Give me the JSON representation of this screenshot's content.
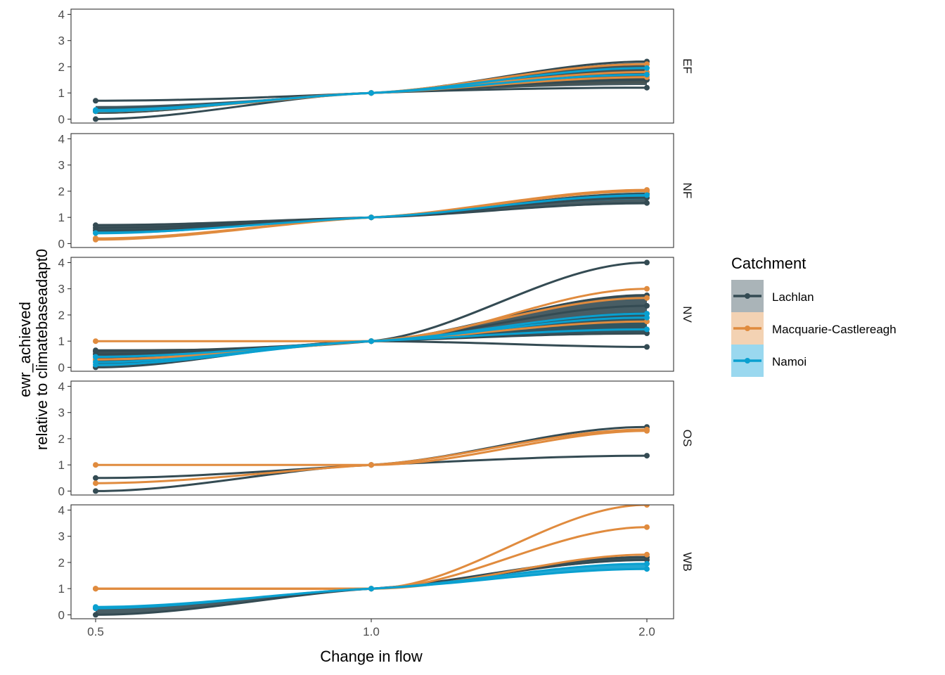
{
  "chart_data": {
    "type": "line",
    "facet_by": "row",
    "facets": [
      "EF",
      "NF",
      "NV",
      "OS",
      "WB"
    ],
    "xlabel": "Change in flow",
    "ylabel_line1": "ewr_achieved",
    "ylabel_line2": "relative to climatebaseadapt0",
    "x_ticks": [
      0.5,
      1.0,
      2.0
    ],
    "x_tick_labels": [
      "0.5",
      "1.0",
      "2.0"
    ],
    "x_scale": "log",
    "y_ticks": [
      0,
      1,
      2,
      3,
      4
    ],
    "y_tick_labels": [
      "0",
      "1",
      "2",
      "3",
      "4"
    ],
    "ylim": [
      -0.15,
      4.2
    ],
    "grid": false,
    "legend": {
      "title": "Catchment",
      "position": "right",
      "entries": [
        {
          "name": "Lachlan",
          "color": "#344b53",
          "fill": "#aab4b8"
        },
        {
          "name": "Macquarie-Castlereagh",
          "color": "#e08b3e",
          "fill": "#f3d2b3"
        },
        {
          "name": "Namoi",
          "color": "#0aa0d0",
          "fill": "#9ad8ef"
        }
      ]
    },
    "panels": [
      {
        "facet": "EF",
        "bands": [
          {
            "catchment": "Namoi",
            "lower": [
              0.2,
              1,
              1.5
            ],
            "upper": [
              0.45,
              1,
              2.0
            ]
          },
          {
            "catchment": "Macquarie-Castlereagh",
            "lower": [
              0.2,
              1,
              1.35
            ],
            "upper": [
              0.4,
              1,
              2.05
            ]
          },
          {
            "catchment": "Lachlan",
            "lower": [
              0.2,
              1,
              1.3
            ],
            "upper": [
              0.5,
              1,
              2.15
            ]
          }
        ],
        "series": [
          {
            "catchment": "Lachlan",
            "values": [
              0.7,
              1,
              2.2
            ]
          },
          {
            "catchment": "Lachlan",
            "values": [
              0.0,
              1,
              1.2
            ]
          },
          {
            "catchment": "Lachlan",
            "values": [
              0.3,
              1,
              1.5
            ]
          },
          {
            "catchment": "Macquarie-Castlereagh",
            "values": [
              0.3,
              1,
              2.1
            ]
          },
          {
            "catchment": "Macquarie-Castlereagh",
            "values": [
              0.3,
              1,
              1.8
            ]
          },
          {
            "catchment": "Macquarie-Castlereagh",
            "values": [
              0.3,
              1,
              1.6
            ]
          },
          {
            "catchment": "Namoi",
            "values": [
              0.35,
              1,
              1.95
            ]
          },
          {
            "catchment": "Namoi",
            "values": [
              0.3,
              1,
              1.7
            ]
          }
        ]
      },
      {
        "facet": "NF",
        "bands": [
          {
            "catchment": "Lachlan",
            "lower": [
              0.4,
              1,
              1.5
            ],
            "upper": [
              0.75,
              1,
              1.95
            ]
          },
          {
            "catchment": "Namoi",
            "lower": [
              0.35,
              1,
              1.7
            ],
            "upper": [
              0.5,
              1,
              1.95
            ]
          }
        ],
        "series": [
          {
            "catchment": "Lachlan",
            "values": [
              0.7,
              1,
              1.55
            ]
          },
          {
            "catchment": "Lachlan",
            "values": [
              0.6,
              1,
              1.75
            ]
          },
          {
            "catchment": "Lachlan",
            "values": [
              0.5,
              1,
              1.9
            ]
          },
          {
            "catchment": "Macquarie-Castlereagh",
            "values": [
              0.15,
              1,
              2.05
            ]
          },
          {
            "catchment": "Macquarie-Castlereagh",
            "values": [
              0.2,
              1,
              2.0
            ]
          },
          {
            "catchment": "Namoi",
            "values": [
              0.4,
              1,
              1.85
            ]
          }
        ]
      },
      {
        "facet": "NV",
        "bands": [
          {
            "catchment": "Namoi",
            "lower": [
              0.0,
              1,
              1.35
            ],
            "upper": [
              0.45,
              1,
              2.1
            ]
          },
          {
            "catchment": "Lachlan",
            "lower": [
              0.1,
              1,
              1.25
            ],
            "upper": [
              0.6,
              1,
              2.8
            ]
          }
        ],
        "series": [
          {
            "catchment": "Lachlan",
            "values": [
              0.65,
              1,
              4.0
            ]
          },
          {
            "catchment": "Lachlan",
            "values": [
              0.6,
              1,
              2.75
            ]
          },
          {
            "catchment": "Lachlan",
            "values": [
              0.5,
              1,
              2.35
            ]
          },
          {
            "catchment": "Lachlan",
            "values": [
              0.3,
              1,
              1.3
            ]
          },
          {
            "catchment": "Lachlan",
            "values": [
              0.0,
              1,
              0.78
            ]
          },
          {
            "catchment": "Macquarie-Castlereagh",
            "values": [
              1.0,
              1,
              3.0
            ]
          },
          {
            "catchment": "Macquarie-Castlereagh",
            "values": [
              0.3,
              1,
              2.65
            ]
          },
          {
            "catchment": "Macquarie-Castlereagh",
            "values": [
              0.3,
              1,
              1.75
            ]
          },
          {
            "catchment": "Namoi",
            "values": [
              0.4,
              1,
              2.05
            ]
          },
          {
            "catchment": "Namoi",
            "values": [
              0.2,
              1,
              1.9
            ]
          },
          {
            "catchment": "Namoi",
            "values": [
              0.1,
              1,
              1.45
            ]
          }
        ]
      },
      {
        "facet": "OS",
        "bands": [],
        "series": [
          {
            "catchment": "Lachlan",
            "values": [
              0.5,
              1,
              2.45
            ]
          },
          {
            "catchment": "Lachlan",
            "values": [
              0.0,
              1,
              1.35
            ]
          },
          {
            "catchment": "Macquarie-Castlereagh",
            "values": [
              1.0,
              1,
              2.3
            ]
          },
          {
            "catchment": "Macquarie-Castlereagh",
            "values": [
              0.3,
              1,
              2.35
            ]
          }
        ]
      },
      {
        "facet": "WB",
        "bands": [
          {
            "catchment": "Namoi",
            "lower": [
              0.25,
              1,
              1.75
            ],
            "upper": [
              0.3,
              1,
              1.95
            ]
          },
          {
            "catchment": "Lachlan",
            "lower": [
              0.0,
              1,
              2.05
            ],
            "upper": [
              0.25,
              1,
              2.25
            ]
          }
        ],
        "series": [
          {
            "catchment": "Lachlan",
            "values": [
              0.0,
              1,
              2.2
            ]
          },
          {
            "catchment": "Lachlan",
            "values": [
              0.25,
              1,
              2.1
            ]
          },
          {
            "catchment": "Macquarie-Castlereagh",
            "values": [
              1.0,
              1,
              4.2
            ]
          },
          {
            "catchment": "Macquarie-Castlereagh",
            "values": [
              1.0,
              1,
              3.35
            ]
          },
          {
            "catchment": "Macquarie-Castlereagh",
            "values": [
              1.0,
              1,
              2.3
            ]
          },
          {
            "catchment": "Namoi",
            "values": [
              0.3,
              1,
              1.95
            ]
          },
          {
            "catchment": "Namoi",
            "values": [
              0.25,
              1,
              1.75
            ]
          }
        ]
      }
    ]
  }
}
